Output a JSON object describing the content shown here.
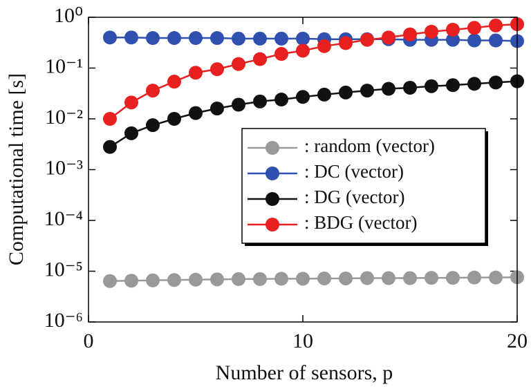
{
  "chart_data": {
    "type": "line",
    "xlabel": "Number of sensors, p",
    "ylabel": "Computational time [s]",
    "log_y": true,
    "x": [
      1,
      2,
      3,
      4,
      5,
      6,
      7,
      8,
      9,
      10,
      11,
      12,
      13,
      14,
      15,
      16,
      17,
      18,
      19,
      20
    ],
    "xlim": [
      0,
      20
    ],
    "xticks": [
      0,
      10,
      20
    ],
    "ylim": [
      1e-06,
      1
    ],
    "yticks": [
      {
        "value": 1e-06,
        "label": "10⁻⁶"
      },
      {
        "value": 1e-05,
        "label": "10⁻⁵"
      },
      {
        "value": 0.0001,
        "label": "10⁻⁴"
      },
      {
        "value": 0.001,
        "label": "10⁻³"
      },
      {
        "value": 0.01,
        "label": "10⁻²"
      },
      {
        "value": 0.1,
        "label": "10⁻¹"
      },
      {
        "value": 1,
        "label": "10⁰"
      }
    ],
    "series": [
      {
        "name": ": random (vector)",
        "color": "#999999",
        "values": [
          6.4e-06,
          6.5e-06,
          6.6e-06,
          6.7e-06,
          6.8e-06,
          6.9e-06,
          7e-06,
          7e-06,
          7.1e-06,
          7.1e-06,
          7.2e-06,
          7.2e-06,
          7.3e-06,
          7.3e-06,
          7.3e-06,
          7.4e-06,
          7.4e-06,
          7.5e-06,
          7.5e-06,
          7.6e-06
        ]
      },
      {
        "name": ": DC (vector)",
        "color": "#3050b0",
        "values": [
          0.4,
          0.4,
          0.39,
          0.39,
          0.39,
          0.39,
          0.38,
          0.38,
          0.38,
          0.38,
          0.37,
          0.37,
          0.37,
          0.37,
          0.36,
          0.36,
          0.36,
          0.35,
          0.35,
          0.34
        ]
      },
      {
        "name": ": DG (vector)",
        "color": "#111111",
        "values": [
          0.0028,
          0.0052,
          0.0075,
          0.01,
          0.013,
          0.016,
          0.019,
          0.022,
          0.024,
          0.027,
          0.03,
          0.033,
          0.036,
          0.039,
          0.041,
          0.044,
          0.046,
          0.049,
          0.052,
          0.055
        ]
      },
      {
        "name": ": BDG (vector)",
        "color": "#e82020",
        "values": [
          0.01,
          0.021,
          0.036,
          0.054,
          0.081,
          0.095,
          0.12,
          0.15,
          0.19,
          0.22,
          0.27,
          0.31,
          0.36,
          0.4,
          0.46,
          0.52,
          0.57,
          0.62,
          0.69,
          0.73
        ]
      }
    ]
  }
}
